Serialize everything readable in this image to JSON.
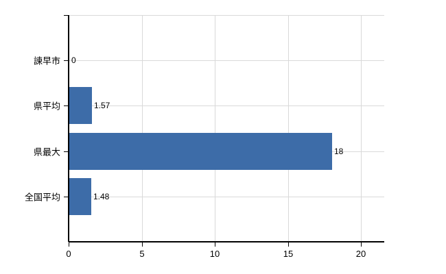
{
  "chart_data": {
    "type": "bar",
    "orientation": "horizontal",
    "title": "",
    "xlabel": "",
    "ylabel": "",
    "categories": [
      "諫早市",
      "県平均",
      "県最大",
      "全国平均"
    ],
    "values": [
      0,
      1.57,
      18,
      1.48
    ],
    "value_labels": [
      "0",
      "1.57",
      "18",
      "1.48"
    ],
    "xlim": [
      0,
      20
    ],
    "x_ticks": [
      0,
      5,
      10,
      15,
      20
    ],
    "x_tick_labels": [
      "0",
      "5",
      "10",
      "15",
      "20"
    ],
    "grid": true,
    "legend": false,
    "bar_color": "#3d6ca8",
    "grid_color": "#d9d9d9",
    "axis_color": "#000000",
    "text_color": "#000000",
    "background_color": "#ffffff"
  }
}
